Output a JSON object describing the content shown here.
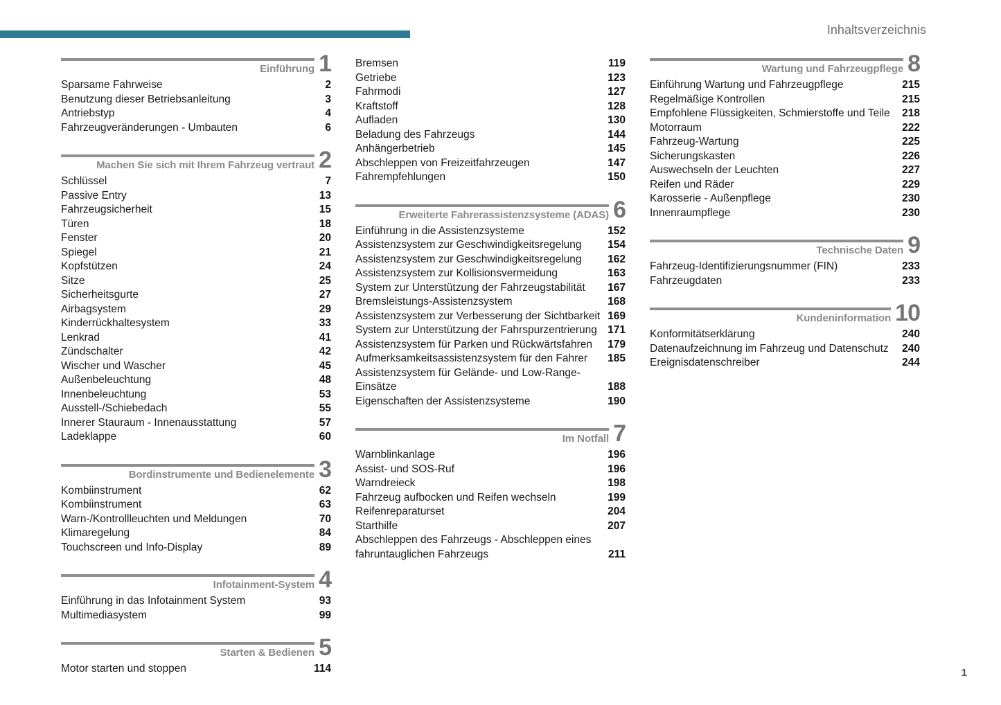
{
  "page": {
    "header_title": "Inhaltsverzeichnis",
    "page_number": "1",
    "accent_color": "#2e7b94"
  },
  "toc": {
    "columns": [
      {
        "sections": [
          {
            "number": "1",
            "title": "Einführung",
            "entries": [
              {
                "label": "Sparsame Fahrweise",
                "page": "2"
              },
              {
                "label": "Benutzung dieser Betriebsanleitung",
                "page": "3"
              },
              {
                "label": "Antriebstyp",
                "page": "4"
              },
              {
                "label": "Fahrzeugveränderungen - Umbauten",
                "page": "6"
              }
            ]
          },
          {
            "number": "2",
            "title": "Machen Sie sich mit Ihrem Fahrzeug vertraut",
            "entries": [
              {
                "label": "Schlüssel",
                "page": "7"
              },
              {
                "label": "Passive Entry",
                "page": "13"
              },
              {
                "label": "Fahrzeugsicherheit",
                "page": "15"
              },
              {
                "label": "Türen",
                "page": "18"
              },
              {
                "label": "Fenster",
                "page": "20"
              },
              {
                "label": "Spiegel",
                "page": "21"
              },
              {
                "label": "Kopfstützen",
                "page": "24"
              },
              {
                "label": "Sitze",
                "page": "25"
              },
              {
                "label": "Sicherheitsgurte",
                "page": "27"
              },
              {
                "label": "Airbagsystem",
                "page": "29"
              },
              {
                "label": "Kinderrückhaltesystem",
                "page": "33"
              },
              {
                "label": "Lenkrad",
                "page": "41"
              },
              {
                "label": "Zündschalter",
                "page": "42"
              },
              {
                "label": "Wischer und Wascher",
                "page": "45"
              },
              {
                "label": "Außenbeleuchtung",
                "page": "48"
              },
              {
                "label": "Innenbeleuchtung",
                "page": "53"
              },
              {
                "label": "Ausstell-/Schiebedach",
                "page": "55"
              },
              {
                "label": "Innerer Stauraum - Innenausstattung",
                "page": "57"
              },
              {
                "label": "Ladeklappe",
                "page": "60"
              }
            ]
          },
          {
            "number": "3",
            "title": "Bordinstrumente und Bedienelemente",
            "entries": [
              {
                "label": "Kombiinstrument",
                "page": "62"
              },
              {
                "label": "Kombiinstrument",
                "page": "63"
              },
              {
                "label": "Warn-/Kontrollleuchten und Meldungen",
                "page": "70"
              },
              {
                "label": "Klimaregelung",
                "page": "84"
              },
              {
                "label": "Touchscreen und Info-Display",
                "page": "89"
              }
            ]
          },
          {
            "number": "4",
            "title": "Infotainment-System",
            "entries": [
              {
                "label": "Einführung in das Infotainment System",
                "page": "93"
              },
              {
                "label": "Multimediasystem",
                "page": "99"
              }
            ]
          },
          {
            "number": "5",
            "title": "Starten & Bedienen",
            "entries": [
              {
                "label": "Motor starten und stoppen",
                "page": "114"
              }
            ]
          }
        ]
      },
      {
        "sections": [
          {
            "number": null,
            "title": null,
            "entries": [
              {
                "label": "Bremsen",
                "page": "119"
              },
              {
                "label": "Getriebe",
                "page": "123"
              },
              {
                "label": "Fahrmodi",
                "page": "127"
              },
              {
                "label": "Kraftstoff",
                "page": "128"
              },
              {
                "label": "Aufladen",
                "page": "130"
              },
              {
                "label": "Beladung des Fahrzeugs",
                "page": "144"
              },
              {
                "label": "Anhängerbetrieb",
                "page": "145"
              },
              {
                "label": "Abschleppen von Freizeitfahrzeugen",
                "page": "147"
              },
              {
                "label": "Fahrempfehlungen",
                "page": "150"
              }
            ]
          },
          {
            "number": "6",
            "title": "Erweiterte Fahrerassistenzsysteme (ADAS)",
            "entries": [
              {
                "label": "Einführung in die Assistenzsysteme",
                "page": "152"
              },
              {
                "label": "Assistenzsystem zur Geschwindigkeitsregelung",
                "page": "154"
              },
              {
                "label": "Assistenzsystem zur Geschwindigkeitsregelung",
                "page": "162"
              },
              {
                "label": "Assistenzsystem zur Kollisionsvermeidung",
                "page": "163"
              },
              {
                "label": "System zur Unterstützung der Fahrzeugstabilität",
                "page": "167"
              },
              {
                "label": "Bremsleistungs-Assistenzsystem",
                "page": "168"
              },
              {
                "label": "Assistenzsystem zur Verbesserung der Sichtbarkeit",
                "page": "169"
              },
              {
                "label": "System zur Unterstützung der Fahrspurzentrierung",
                "page": "171"
              },
              {
                "label": "Assistenzsystem für Parken und Rückwärtsfahren",
                "page": "179"
              },
              {
                "label": "Aufmerksamkeitsassistenzsystem für den Fahrer",
                "page": "185"
              },
              {
                "label": "Assistenzsystem für Gelände- und Low-Range-Einsätze",
                "page": "188"
              },
              {
                "label": "Eigenschaften der Assistenzsysteme",
                "page": "190"
              }
            ]
          },
          {
            "number": "7",
            "title": "Im Notfall",
            "entries": [
              {
                "label": "Warnblinkanlage",
                "page": "196"
              },
              {
                "label": "Assist- und SOS-Ruf",
                "page": "196"
              },
              {
                "label": "Warndreieck",
                "page": "198"
              },
              {
                "label": "Fahrzeug aufbocken und Reifen wechseln",
                "page": "199"
              },
              {
                "label": "Reifenreparaturset",
                "page": "204"
              },
              {
                "label": "Starthilfe",
                "page": "207"
              },
              {
                "label": "Abschleppen des Fahrzeugs - Abschleppen eines fahruntauglichen Fahrzeugs",
                "page": "211"
              }
            ]
          }
        ]
      },
      {
        "sections": [
          {
            "number": "8",
            "title": "Wartung und Fahrzeugpflege",
            "entries": [
              {
                "label": "Einführung Wartung und Fahrzeugpflege",
                "page": "215"
              },
              {
                "label": "Regelmäßige Kontrollen",
                "page": "215"
              },
              {
                "label": "Empfohlene Flüssigkeiten, Schmierstoffe und Teile",
                "page": "218"
              },
              {
                "label": "Motorraum",
                "page": "222"
              },
              {
                "label": "Fahrzeug-Wartung",
                "page": "225"
              },
              {
                "label": "Sicherungskasten",
                "page": "226"
              },
              {
                "label": "Auswechseln der Leuchten",
                "page": "227"
              },
              {
                "label": "Reifen und Räder",
                "page": "229"
              },
              {
                "label": "Karosserie - Außenpflege",
                "page": "230"
              },
              {
                "label": "Innenraumpflege",
                "page": "230"
              }
            ]
          },
          {
            "number": "9",
            "title": "Technische Daten",
            "entries": [
              {
                "label": "Fahrzeug-Identifizierungsnummer (FIN)",
                "page": "233"
              },
              {
                "label": "Fahrzeugdaten",
                "page": "233"
              }
            ]
          },
          {
            "number": "10",
            "title": "Kundeninformation",
            "entries": [
              {
                "label": "Konformitätserklärung",
                "page": "240"
              },
              {
                "label": "Datenaufzeichnung im Fahrzeug und Datenschutz",
                "page": "240"
              },
              {
                "label": "Ereignisdatenschreiber",
                "page": "244"
              }
            ]
          }
        ]
      }
    ]
  }
}
